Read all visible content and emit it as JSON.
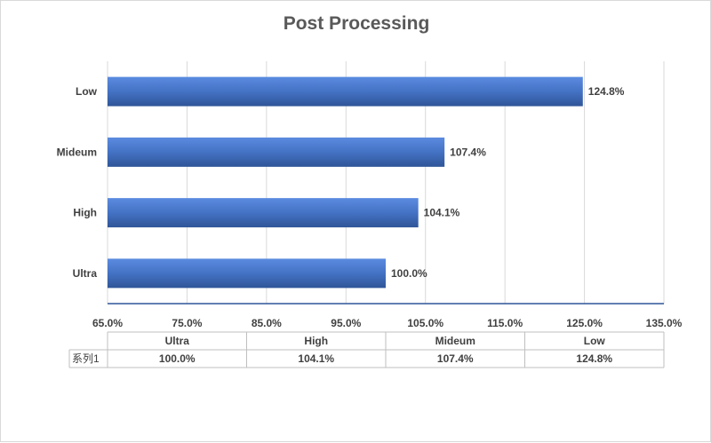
{
  "chart_data": {
    "type": "bar",
    "orientation": "horizontal",
    "title": "Post Processing",
    "categories": [
      "Ultra",
      "High",
      "Mideum",
      "Low"
    ],
    "series": [
      {
        "name": "系列1",
        "values": [
          100.0,
          104.1,
          107.4,
          124.8
        ]
      }
    ],
    "value_labels": [
      "100.0%",
      "104.1%",
      "107.4%",
      "124.8%"
    ],
    "xlim": [
      65,
      135
    ],
    "x_ticks": [
      65,
      75,
      85,
      95,
      105,
      115,
      125,
      135
    ],
    "x_tick_labels": [
      "65.0%",
      "75.0%",
      "85.0%",
      "95.0%",
      "105.0%",
      "115.0%",
      "125.0%",
      "135.0%"
    ],
    "grid": true,
    "data_table": true,
    "bar_color": "#4472C4"
  }
}
